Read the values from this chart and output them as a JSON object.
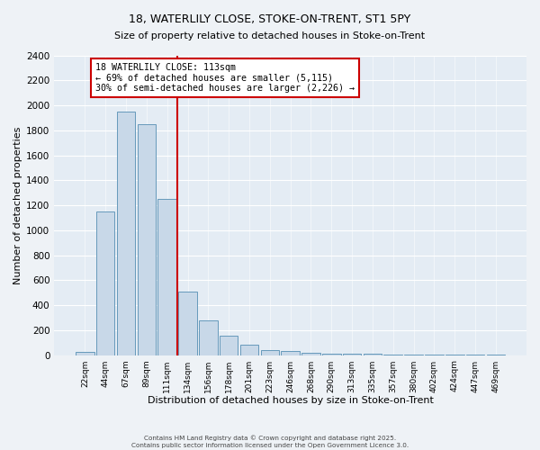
{
  "title1": "18, WATERLILY CLOSE, STOKE-ON-TRENT, ST1 5PY",
  "title2": "Size of property relative to detached houses in Stoke-on-Trent",
  "xlabel": "Distribution of detached houses by size in Stoke-on-Trent",
  "ylabel": "Number of detached properties",
  "bar_labels": [
    "22sqm",
    "44sqm",
    "67sqm",
    "89sqm",
    "111sqm",
    "134sqm",
    "156sqm",
    "178sqm",
    "201sqm",
    "223sqm",
    "246sqm",
    "268sqm",
    "290sqm",
    "313sqm",
    "335sqm",
    "357sqm",
    "380sqm",
    "402sqm",
    "424sqm",
    "447sqm",
    "469sqm"
  ],
  "bar_values": [
    25,
    1150,
    1950,
    1850,
    1250,
    510,
    275,
    155,
    85,
    40,
    35,
    20,
    15,
    10,
    8,
    5,
    4,
    3,
    2,
    2,
    1
  ],
  "bar_color": "#c8d8e8",
  "bar_edge_color": "#6699bb",
  "property_line_x": 4.5,
  "annotation_text": "18 WATERLILY CLOSE: 113sqm\n← 69% of detached houses are smaller (5,115)\n30% of semi-detached houses are larger (2,226) →",
  "annotation_box_color": "#ffffff",
  "annotation_box_edge_color": "#cc0000",
  "line_color": "#cc0000",
  "ylim": [
    0,
    2400
  ],
  "yticks": [
    0,
    200,
    400,
    600,
    800,
    1000,
    1200,
    1400,
    1600,
    1800,
    2000,
    2200,
    2400
  ],
  "footer1": "Contains HM Land Registry data © Crown copyright and database right 2025.",
  "footer2": "Contains public sector information licensed under the Open Government Licence 3.0.",
  "bg_color": "#eef2f6",
  "plot_bg_color": "#e4ecf4"
}
